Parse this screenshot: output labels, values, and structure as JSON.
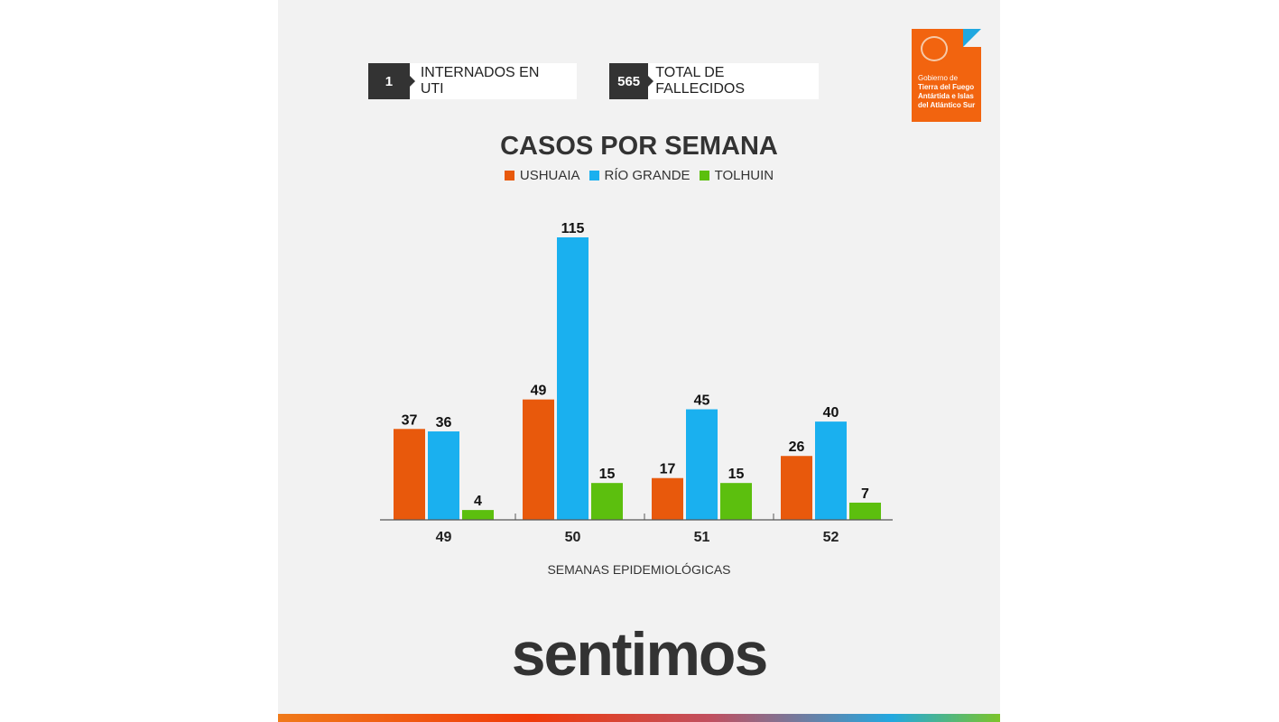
{
  "stats": [
    {
      "value": "1",
      "label": "INTERNADOS EN UTI"
    },
    {
      "value": "565",
      "label": "TOTAL DE FALLECIDOS"
    }
  ],
  "logo": {
    "line1": "Gobierno de",
    "line2": "Tierra del Fuego",
    "line3": "Antártida e Islas",
    "line4": "del Atlántico Sur"
  },
  "brand": "sentimos",
  "chart_data": {
    "type": "bar",
    "title": "CASOS POR SEMANA",
    "xlabel": "SEMANAS EPIDEMIOLÓGICAS",
    "ylabel": "",
    "categories": [
      "49",
      "50",
      "51",
      "52"
    ],
    "series": [
      {
        "name": "USHUAIA",
        "color": "#e8590c",
        "values": [
          37,
          49,
          17,
          26
        ]
      },
      {
        "name": "RÍO GRANDE",
        "color": "#1ab0ef",
        "values": [
          36,
          115,
          45,
          40
        ]
      },
      {
        "name": "TOLHUIN",
        "color": "#5cbf0e",
        "values": [
          4,
          15,
          15,
          7
        ]
      }
    ],
    "legend": "top",
    "grid": false,
    "data_labels": true
  }
}
